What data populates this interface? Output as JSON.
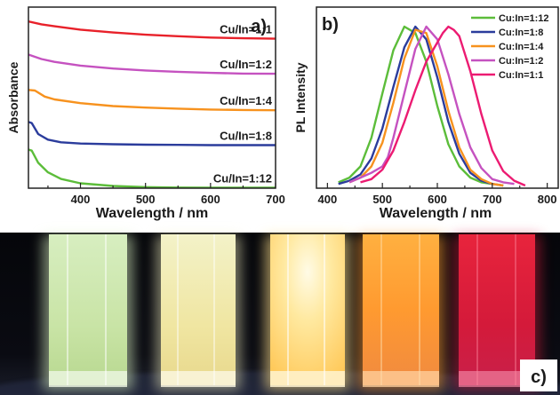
{
  "panel_a": {
    "label": "a)",
    "xlabel": "Wavelength / nm",
    "ylabel": "Absorbance",
    "x_ticks": [
      "400",
      "500",
      "600",
      "700"
    ]
  },
  "panel_b": {
    "label": "b)",
    "xlabel": "Wavelength / nm",
    "ylabel": "PL Intensity",
    "x_ticks": [
      "400",
      "500",
      "600",
      "700",
      "800"
    ]
  },
  "panel_c": {
    "label": "c)"
  },
  "colors": {
    "red": "#e8212a",
    "magenta": "#c552c0",
    "orange": "#f7921e",
    "blue": "#2b3c9c",
    "green": "#5cbd3a",
    "pink": "#ec1b72"
  },
  "photo_description": "five cuvettes glowing under UV light",
  "chart_data": [
    {
      "type": "line",
      "panel": "a)",
      "title": "",
      "xlabel": "Wavelength / nm",
      "ylabel": "Absorbance",
      "xlim": [
        320,
        700
      ],
      "x_ticks": [
        400,
        500,
        600,
        700
      ],
      "y_ticks_shown": false,
      "series": [
        {
          "name": "Cu/In=1:1",
          "color": "#e8212a",
          "x": [
            320,
            340,
            360,
            400,
            450,
            500,
            550,
            600,
            650,
            700
          ],
          "y": [
            7.55,
            7.42,
            7.33,
            7.18,
            7.05,
            6.95,
            6.88,
            6.82,
            6.79,
            6.77
          ]
        },
        {
          "name": "Cu/In=1:2",
          "color": "#c552c0",
          "x": [
            320,
            340,
            360,
            400,
            450,
            500,
            550,
            600,
            650,
            700
          ],
          "y": [
            6.05,
            5.85,
            5.72,
            5.55,
            5.42,
            5.33,
            5.27,
            5.22,
            5.19,
            5.18
          ]
        },
        {
          "name": "Cu/In=1:4",
          "color": "#f7921e",
          "x": [
            320,
            330,
            345,
            360,
            400,
            450,
            500,
            550,
            600,
            650,
            700
          ],
          "y": [
            4.45,
            4.42,
            4.15,
            4.02,
            3.85,
            3.72,
            3.65,
            3.6,
            3.56,
            3.54,
            3.53
          ]
        },
        {
          "name": "Cu/In=1:8",
          "color": "#2b3c9c",
          "x": [
            320,
            325,
            335,
            350,
            370,
            400,
            450,
            500,
            550,
            600,
            650,
            700
          ],
          "y": [
            3.0,
            2.95,
            2.45,
            2.2,
            2.08,
            2.02,
            1.99,
            1.97,
            1.96,
            1.95,
            1.95,
            1.95
          ]
        },
        {
          "name": "Cu/In=1:12",
          "color": "#5cbd3a",
          "x": [
            320,
            325,
            335,
            350,
            370,
            400,
            450,
            500,
            550,
            600,
            650,
            700
          ],
          "y": [
            1.75,
            1.7,
            1.15,
            0.72,
            0.42,
            0.22,
            0.1,
            0.05,
            0.03,
            0.02,
            0.02,
            0.02
          ]
        }
      ]
    },
    {
      "type": "line",
      "panel": "b)",
      "title": "",
      "xlabel": "Wavelength / nm",
      "ylabel": "PL Intensity",
      "xlim": [
        380,
        820
      ],
      "ylim": [
        0,
        1
      ],
      "x_ticks": [
        400,
        500,
        600,
        700,
        800
      ],
      "y_ticks_shown": false,
      "legend_position": "top-right",
      "series": [
        {
          "name": "Cu:In=1:12",
          "color": "#5cbd3a",
          "peak": 540,
          "x": [
            420,
            440,
            460,
            480,
            500,
            520,
            540,
            560,
            580,
            600,
            620,
            640,
            660,
            680,
            700
          ],
          "y": [
            0.02,
            0.05,
            0.12,
            0.3,
            0.58,
            0.85,
            1.0,
            0.96,
            0.78,
            0.5,
            0.26,
            0.12,
            0.05,
            0.02,
            0.01
          ]
        },
        {
          "name": "Cu:In=1:8",
          "color": "#2b3c9c",
          "peak": 563,
          "x": [
            420,
            440,
            460,
            480,
            500,
            520,
            540,
            560,
            580,
            600,
            620,
            640,
            660,
            680,
            700,
            720
          ],
          "y": [
            0.01,
            0.03,
            0.07,
            0.17,
            0.36,
            0.62,
            0.87,
            1.0,
            0.92,
            0.68,
            0.4,
            0.2,
            0.08,
            0.03,
            0.01,
            0.0
          ]
        },
        {
          "name": "Cu:In=1:4",
          "color": "#f7921e",
          "peak": 570,
          "x": [
            440,
            460,
            480,
            500,
            520,
            540,
            560,
            580,
            600,
            620,
            640,
            660,
            680,
            700,
            720
          ],
          "y": [
            0.02,
            0.05,
            0.12,
            0.27,
            0.52,
            0.8,
            0.98,
            0.96,
            0.75,
            0.47,
            0.24,
            0.1,
            0.04,
            0.01,
            0.0
          ]
        },
        {
          "name": "Cu:In=1:2",
          "color": "#c552c0",
          "peak": 580,
          "x": [
            440,
            460,
            480,
            500,
            510,
            520,
            540,
            560,
            580,
            600,
            620,
            640,
            660,
            680,
            700,
            720,
            740
          ],
          "y": [
            0.02,
            0.05,
            0.08,
            0.12,
            0.18,
            0.3,
            0.58,
            0.86,
            1.0,
            0.92,
            0.7,
            0.45,
            0.24,
            0.11,
            0.04,
            0.02,
            0.01
          ]
        },
        {
          "name": "Cu:In=1:1",
          "color": "#ec1b72",
          "peak": 625,
          "x": [
            460,
            480,
            500,
            520,
            540,
            560,
            580,
            600,
            610,
            620,
            630,
            640,
            660,
            680,
            700,
            720,
            740,
            760
          ],
          "y": [
            0.02,
            0.04,
            0.1,
            0.22,
            0.4,
            0.6,
            0.78,
            0.9,
            0.96,
            1.0,
            0.98,
            0.94,
            0.72,
            0.45,
            0.22,
            0.09,
            0.03,
            0.0
          ]
        }
      ]
    }
  ]
}
